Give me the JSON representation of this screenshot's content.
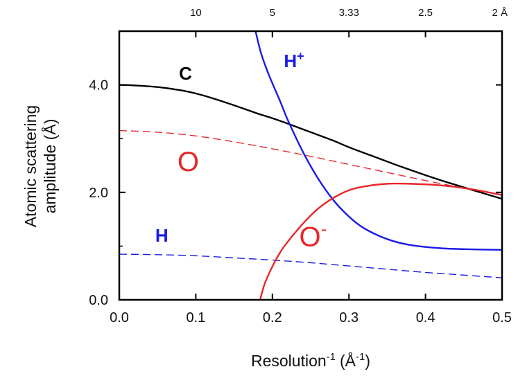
{
  "chart_data": {
    "type": "line",
    "xlabel": "Resolution",
    "xlabel_exponent": "-1",
    "xlabel_units": "(Å",
    "xlabel_units_exponent": "-1",
    "xlabel_close": ")",
    "ylabel_line1": "Atomic scattering",
    "ylabel_line2": "amplitude (Å)",
    "xlim": [
      0.0,
      0.5
    ],
    "ylim": [
      0.0,
      5.0
    ],
    "x_ticks": [
      {
        "value": 0.0,
        "label": "0.0"
      },
      {
        "value": 0.1,
        "label": "0.1"
      },
      {
        "value": 0.2,
        "label": "0.2"
      },
      {
        "value": 0.3,
        "label": "0.3"
      },
      {
        "value": 0.4,
        "label": "0.4"
      },
      {
        "value": 0.5,
        "label": "0.5"
      }
    ],
    "y_ticks": [
      {
        "value": 0.0,
        "label": "0.0"
      },
      {
        "value": 2.0,
        "label": "2.0"
      },
      {
        "value": 4.0,
        "label": "4.0"
      }
    ],
    "y_minor_ticks": [
      1.0,
      3.0
    ],
    "top_axis_ticks": [
      {
        "value": 0.1,
        "label": "10"
      },
      {
        "value": 0.2,
        "label": "5"
      },
      {
        "value": 0.3,
        "label": "3.33"
      },
      {
        "value": 0.4,
        "label": "2.5"
      },
      {
        "value": 0.5,
        "label": "2 Å"
      }
    ],
    "grid": false,
    "series": [
      {
        "name": "C",
        "color": "#000000",
        "style": "solid",
        "x": [
          0.0,
          0.02,
          0.05,
          0.08,
          0.1,
          0.12,
          0.15,
          0.18,
          0.2,
          0.22,
          0.25,
          0.28,
          0.3,
          0.33,
          0.36,
          0.4,
          0.43,
          0.46,
          0.5
        ],
        "y": [
          4.0,
          3.99,
          3.96,
          3.9,
          3.84,
          3.76,
          3.62,
          3.47,
          3.38,
          3.28,
          3.12,
          2.96,
          2.84,
          2.68,
          2.52,
          2.32,
          2.18,
          2.05,
          1.88
        ]
      },
      {
        "name": "O",
        "color": "#e8262a",
        "style": "dashed",
        "x": [
          0.0,
          0.05,
          0.1,
          0.15,
          0.2,
          0.25,
          0.3,
          0.35,
          0.4,
          0.45,
          0.5
        ],
        "y": [
          3.15,
          3.12,
          3.05,
          2.94,
          2.81,
          2.67,
          2.52,
          2.37,
          2.22,
          2.08,
          1.96
        ]
      },
      {
        "name": "H",
        "color": "#1a1ae6",
        "style": "dashed",
        "x": [
          0.0,
          0.05,
          0.1,
          0.15,
          0.2,
          0.25,
          0.3,
          0.35,
          0.4,
          0.45,
          0.5
        ],
        "y": [
          0.85,
          0.84,
          0.82,
          0.78,
          0.74,
          0.69,
          0.63,
          0.57,
          0.51,
          0.46,
          0.41
        ]
      },
      {
        "name": "H+",
        "label_main": "H",
        "label_sup": "+",
        "color": "#1a1ae6",
        "style": "solid",
        "x": [
          0.178,
          0.185,
          0.195,
          0.21,
          0.22,
          0.24,
          0.26,
          0.28,
          0.3,
          0.32,
          0.35,
          0.38,
          0.42,
          0.46,
          0.5
        ],
        "y": [
          5.0,
          4.6,
          4.2,
          3.7,
          3.35,
          2.75,
          2.25,
          1.85,
          1.55,
          1.33,
          1.13,
          1.02,
          0.96,
          0.94,
          0.93
        ]
      },
      {
        "name": "O-",
        "label_main": "O",
        "label_sup": "-",
        "color": "#e8262a",
        "style": "solid",
        "x": [
          0.184,
          0.19,
          0.2,
          0.21,
          0.22,
          0.24,
          0.26,
          0.28,
          0.3,
          0.32,
          0.35,
          0.38,
          0.42,
          0.46,
          0.5
        ],
        "y": [
          0.0,
          0.3,
          0.62,
          0.88,
          1.08,
          1.42,
          1.7,
          1.9,
          2.04,
          2.11,
          2.16,
          2.16,
          2.13,
          2.06,
          1.95
        ]
      }
    ],
    "labels": [
      {
        "series": "C",
        "x": 0.078,
        "y": 4.1
      },
      {
        "series": "O",
        "x": 0.076,
        "y": 2.4
      },
      {
        "series": "H",
        "x": 0.047,
        "y": 1.08
      },
      {
        "series": "H+",
        "x": 0.215,
        "y": 4.33
      },
      {
        "series": "O-",
        "x": 0.235,
        "y": 1.0
      }
    ]
  }
}
